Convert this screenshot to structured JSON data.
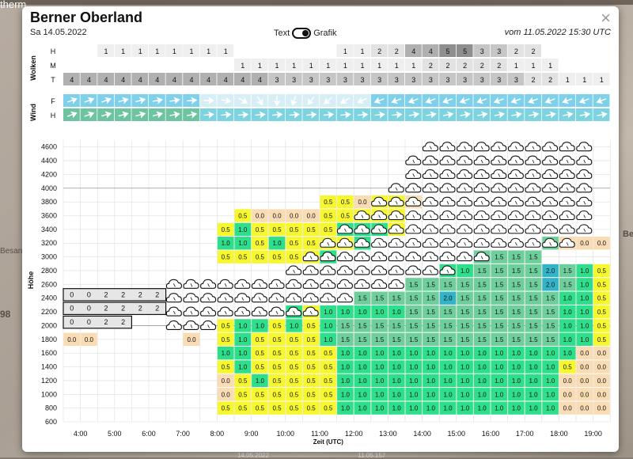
{
  "map": {
    "label_top": "therm",
    "label_left": "Besan",
    "label_side": "98",
    "label_right": "Bel"
  },
  "header": {
    "title": "Berner Oberland",
    "date": "Sa 14.05.2022",
    "toggle_text": "Text",
    "toggle_grafik": "Grafik",
    "issued": "vom 11.05.2022 15:30 UTC",
    "close_label": "×"
  },
  "footer": {
    "left": "14.05.2022",
    "right": "11.05.157"
  },
  "chart_data": {
    "type": "table",
    "xlabel": "Zeit (UTC)",
    "ylabel": "Höhe",
    "time_ticks": [
      "4:00",
      "5:00",
      "6:00",
      "7:00",
      "8:00",
      "9:00",
      "10:00",
      "11:00",
      "12:00",
      "13:00",
      "14:00",
      "15:00",
      "16:00",
      "17:00",
      "18:00",
      "19:00"
    ],
    "altitude_ticks": [
      600,
      800,
      1000,
      1200,
      1400,
      1600,
      1800,
      2000,
      2200,
      2400,
      2600,
      2800,
      3000,
      3200,
      3400,
      3600,
      3800,
      4000,
      4200,
      4400,
      4600
    ],
    "cloud_group_label": "Wolken",
    "cloud_rows": [
      {
        "label": "H",
        "values": [
          "",
          "",
          "1",
          "1",
          "1",
          "1",
          "1",
          "1",
          "1",
          "1",
          "",
          "",
          "",
          "",
          "",
          "",
          "1",
          "1",
          "2",
          "2",
          "4",
          "4",
          "5",
          "5",
          "3",
          "3",
          "2",
          "2",
          "",
          "",
          "",
          ""
        ]
      },
      {
        "label": "M",
        "values": [
          "",
          "",
          "",
          "",
          "",
          "",
          "",
          "",
          "",
          "",
          "1",
          "1",
          "1",
          "1",
          "1",
          "1",
          "1",
          "1",
          "1",
          "1",
          "1",
          "2",
          "2",
          "2",
          "2",
          "2",
          "1",
          "1",
          "1",
          "",
          "",
          ""
        ]
      },
      {
        "label": "T",
        "values": [
          "4",
          "4",
          "4",
          "4",
          "4",
          "4",
          "4",
          "4",
          "4",
          "4",
          "4",
          "4",
          "3",
          "3",
          "3",
          "3",
          "3",
          "3",
          "3",
          "3",
          "3",
          "3",
          "3",
          "3",
          "3",
          "3",
          "3",
          "2",
          "2",
          "1",
          "1",
          "1"
        ]
      }
    ],
    "wind_group_label": "Wind",
    "wind_rows": [
      {
        "label": "F",
        "directions": [
          70,
          70,
          70,
          75,
          75,
          80,
          80,
          85,
          90,
          100,
          120,
          150,
          180,
          200,
          220,
          230,
          240,
          245,
          250,
          250,
          250,
          250,
          250,
          250,
          250,
          250,
          250,
          250,
          250,
          250,
          250,
          250
        ]
      },
      {
        "label": "H",
        "directions": [
          70,
          70,
          75,
          75,
          75,
          75,
          80,
          80,
          85,
          85,
          85,
          85,
          85,
          85,
          85,
          85,
          85,
          85,
          85,
          85,
          80,
          80,
          80,
          80,
          80,
          80,
          80,
          80,
          80,
          80,
          80,
          80
        ]
      }
    ],
    "grid": [
      {
        "alt": 600,
        "cells": []
      },
      {
        "alt": 800,
        "cells": [
          "",
          "",
          "",
          "",
          "",
          "",
          "",
          "",
          "",
          "0.5",
          "0.5",
          "0.5",
          "0.5",
          "0.5",
          "0.5",
          "0.5",
          "1.0",
          "1.0",
          "1.0",
          "1.0",
          "1.0",
          "1.0",
          "1.0",
          "1.0",
          "1.0",
          "1.0",
          "1.0",
          "1.0",
          "1.0",
          "0.0",
          "0.0",
          "0.0",
          "0.0",
          "0.5",
          "0.0",
          "0.0",
          "",
          "",
          "0.0"
        ]
      },
      {
        "alt": 1000,
        "cells": [
          "",
          "",
          "",
          "",
          "",
          "",
          "",
          "",
          "",
          "0.0",
          "0.5",
          "0.5",
          "0.5",
          "0.5",
          "0.5",
          "0.5",
          "1.0",
          "1.0",
          "1.0",
          "1.0",
          "1.0",
          "1.0",
          "1.0",
          "1.0",
          "1.0",
          "1.0",
          "1.0",
          "1.0",
          "1.0",
          "0.0",
          "0.0",
          "0.0",
          "0.0",
          "0.5",
          "0.5",
          "0.0",
          "",
          "0.0",
          "0.0"
        ]
      },
      {
        "alt": 1200,
        "cells": [
          "",
          "",
          "",
          "",
          "",
          "",
          "",
          "",
          "",
          "0.0",
          "0.5",
          "1.0",
          "0.5",
          "0.5",
          "0.5",
          "0.5",
          "1.0",
          "1.0",
          "1.0",
          "1.0",
          "1.0",
          "1.0",
          "1.0",
          "1.0",
          "1.0",
          "1.0",
          "1.0",
          "1.0",
          "1.0",
          "0.0",
          "0.0",
          "0.0",
          "0.0",
          "1.0",
          "0.5",
          "0.0",
          "",
          "0.0",
          "0.0"
        ]
      },
      {
        "alt": 1400,
        "cells": [
          "",
          "",
          "",
          "",
          "",
          "",
          "",
          "",
          "",
          "0.5",
          "1.0",
          "0.5",
          "0.5",
          "0.5",
          "0.5",
          "0.5",
          "1.0",
          "1.0",
          "1.0",
          "1.0",
          "1.0",
          "1.0",
          "1.0",
          "1.0",
          "1.0",
          "1.0",
          "1.0",
          "1.0",
          "1.0",
          "0.5",
          "0.0",
          "0.0",
          "0.0",
          "1.0",
          "0.5",
          "0.0",
          "",
          "0.0",
          "0.0"
        ]
      },
      {
        "alt": 1600,
        "cells": [
          "",
          "",
          "",
          "",
          "",
          "",
          "",
          "",
          "",
          "1.0",
          "1.0",
          "0.5",
          "0.5",
          "0.5",
          "0.5",
          "0.5",
          "1.0",
          "1.0",
          "1.0",
          "1.0",
          "1.0",
          "1.0",
          "1.0",
          "1.0",
          "1.0",
          "1.0",
          "1.0",
          "1.0",
          "1.0",
          "1.0",
          "0.0",
          "0.0",
          "0.0",
          "1.0",
          "0.5",
          "0.0",
          "",
          "0.0",
          "0.0"
        ]
      },
      {
        "alt": 1800,
        "cells": [
          "0.0",
          "0.0",
          "",
          "",
          "",
          "",
          "",
          "0.0",
          "",
          "0.5",
          "1.0",
          "0.5",
          "0.5",
          "0.5",
          "0.5",
          "1.0",
          "1.5",
          "1.5",
          "1.5",
          "1.5",
          "1.5",
          "1.5",
          "1.5",
          "1.5",
          "1.5",
          "1.5",
          "1.5",
          "1.5",
          "1.5",
          "1.0",
          "1.0",
          "0.5",
          "0.0",
          "1.0",
          "0.5",
          "0.0",
          "",
          "0.0",
          "0.0"
        ]
      },
      {
        "alt": 2000,
        "cells": [
          "",
          "",
          "",
          "",
          "",
          "",
          "",
          "",
          "",
          "0.5",
          "1.0",
          "1.0",
          "0.5",
          "1.0",
          "0.5",
          "1.0",
          "1.5",
          "1.5",
          "1.5",
          "1.5",
          "1.5",
          "1.5",
          "1.5",
          "1.5",
          "1.5",
          "1.5",
          "1.5",
          "1.5",
          "1.5",
          "1.0",
          "1.0",
          "0.5",
          "0.0",
          "1.0",
          "0.5",
          "0.0",
          "",
          "0.0",
          "0.0"
        ]
      },
      {
        "alt": 2200,
        "cells": [
          "",
          "",
          "",
          "",
          "",
          "",
          "",
          "",
          "",
          "",
          "",
          "",
          "",
          "1.0",
          "0.5",
          "1.0",
          "1.0",
          "1.0",
          "1.0",
          "1.0",
          "1.5",
          "1.5",
          "1.5",
          "1.5",
          "1.5",
          "1.5",
          "1.5",
          "1.5",
          "1.5",
          "1.0",
          "1.0",
          "0.5",
          "0.0",
          "1.0",
          "0.5",
          "0.0",
          "",
          "0.0",
          "0.0"
        ]
      },
      {
        "alt": 2400,
        "cells": [
          "",
          "",
          "",
          "",
          "",
          "",
          "",
          "",
          "",
          "",
          "",
          "",
          "",
          "",
          "",
          "",
          "",
          "1.5",
          "1.5",
          "1.5",
          "1.5",
          "1.5",
          "2.0",
          "1.5",
          "1.5",
          "1.5",
          "1.5",
          "1.5",
          "1.5",
          "1.0",
          "1.0",
          "0.5",
          "0.0",
          "1.0",
          "0.5",
          "0.0",
          "",
          "0.0",
          "0.0"
        ]
      },
      {
        "alt": 2600,
        "cells": [
          "",
          "",
          "",
          "",
          "",
          "",
          "",
          "",
          "",
          "",
          "",
          "",
          "",
          "",
          "",
          "",
          "",
          "",
          "",
          "",
          "1.5",
          "1.5",
          "1.5",
          "1.5",
          "1.5",
          "1.5",
          "1.5",
          "1.5",
          "2.0",
          "1.5",
          "1.0",
          "0.5",
          "0.5",
          "1.0",
          "0.5",
          "0.0",
          "",
          "0.0",
          "0.0"
        ]
      },
      {
        "alt": 2800,
        "cells": [
          "",
          "",
          "",
          "",
          "",
          "",
          "",
          "",
          "",
          "",
          "",
          "",
          "",
          "",
          "",
          "",
          "",
          "",
          "",
          "",
          "",
          "",
          "1.0",
          "1.0",
          "1.5",
          "1.5",
          "1.5",
          "1.5",
          "2.0",
          "1.5",
          "1.0",
          "0.5",
          "0.5",
          "1.0",
          "0.5",
          "0.0",
          "0.0",
          "0.0",
          "0.0"
        ]
      },
      {
        "alt": 3000,
        "cells": [
          "",
          "",
          "",
          "",
          "",
          "",
          "",
          "",
          "",
          "0.5",
          "0.5",
          "0.5",
          "0.5",
          "0.5",
          "0.5",
          "1.0",
          "",
          "",
          "",
          "",
          "",
          "",
          "",
          "",
          "1.5",
          "1.5",
          "1.5",
          "1.5",
          "",
          "",
          "",
          "",
          "",
          "",
          "",
          "0.0",
          "0.0",
          "",
          "0.0"
        ]
      },
      {
        "alt": 3200,
        "cells": [
          "",
          "",
          "",
          "",
          "",
          "",
          "",
          "",
          "",
          "1.0",
          "1.0",
          "0.5",
          "1.0",
          "0.5",
          "0.5",
          "0.5",
          "0.5",
          "1.0",
          "",
          "",
          "",
          "",
          "",
          "",
          "",
          "",
          "",
          "",
          "1.5",
          "0.0",
          "0.0",
          "0.0",
          "1.5",
          "1.0",
          "0.0",
          "0.0",
          "0.0",
          "0.0",
          "0.0"
        ]
      },
      {
        "alt": 3400,
        "cells": [
          "",
          "",
          "",
          "",
          "",
          "",
          "",
          "",
          "",
          "0.5",
          "1.0",
          "0.5",
          "0.5",
          "0.5",
          "0.5",
          "0.5",
          "1.0",
          "1.0",
          "1.0",
          "0.5",
          "",
          "",
          "",
          "",
          "",
          "",
          "",
          "",
          "",
          "",
          "",
          "",
          "",
          "",
          "",
          "",
          "0",
          "",
          ""
        ]
      },
      {
        "alt": 3600,
        "cells": [
          "",
          "",
          "",
          "",
          "",
          "",
          "",
          "",
          "",
          "",
          "0.5",
          "0.0",
          "0.0",
          "0.0",
          "0.0",
          "0.5",
          "0.5",
          "0.5",
          "0.5",
          "0.5",
          "",
          "",
          "",
          "",
          "",
          "",
          "",
          "",
          "",
          "",
          "",
          "",
          "",
          "",
          "",
          "",
          "",
          "",
          ""
        ]
      },
      {
        "alt": 3800,
        "cells": [
          "",
          "",
          "",
          "",
          "",
          "",
          "",
          "",
          "",
          "",
          "",
          "",
          "",
          "",
          "",
          "0.5",
          "0.5",
          "0.0",
          "0.5",
          "0.5",
          "0.0",
          "",
          "",
          "",
          "",
          "",
          "",
          "",
          "",
          "",
          "",
          "",
          "",
          "",
          "",
          "",
          "",
          "",
          ""
        ]
      }
    ],
    "layer_labels": [
      {
        "alt": 2450,
        "values": [
          "0",
          "0",
          "2",
          "2",
          "2",
          "2"
        ]
      },
      {
        "alt": 2250,
        "values": [
          "0",
          "0",
          "2",
          "2",
          "2",
          "2"
        ]
      },
      {
        "alt": 2050,
        "values": [
          "0",
          "0",
          "2",
          "2"
        ]
      }
    ]
  }
}
